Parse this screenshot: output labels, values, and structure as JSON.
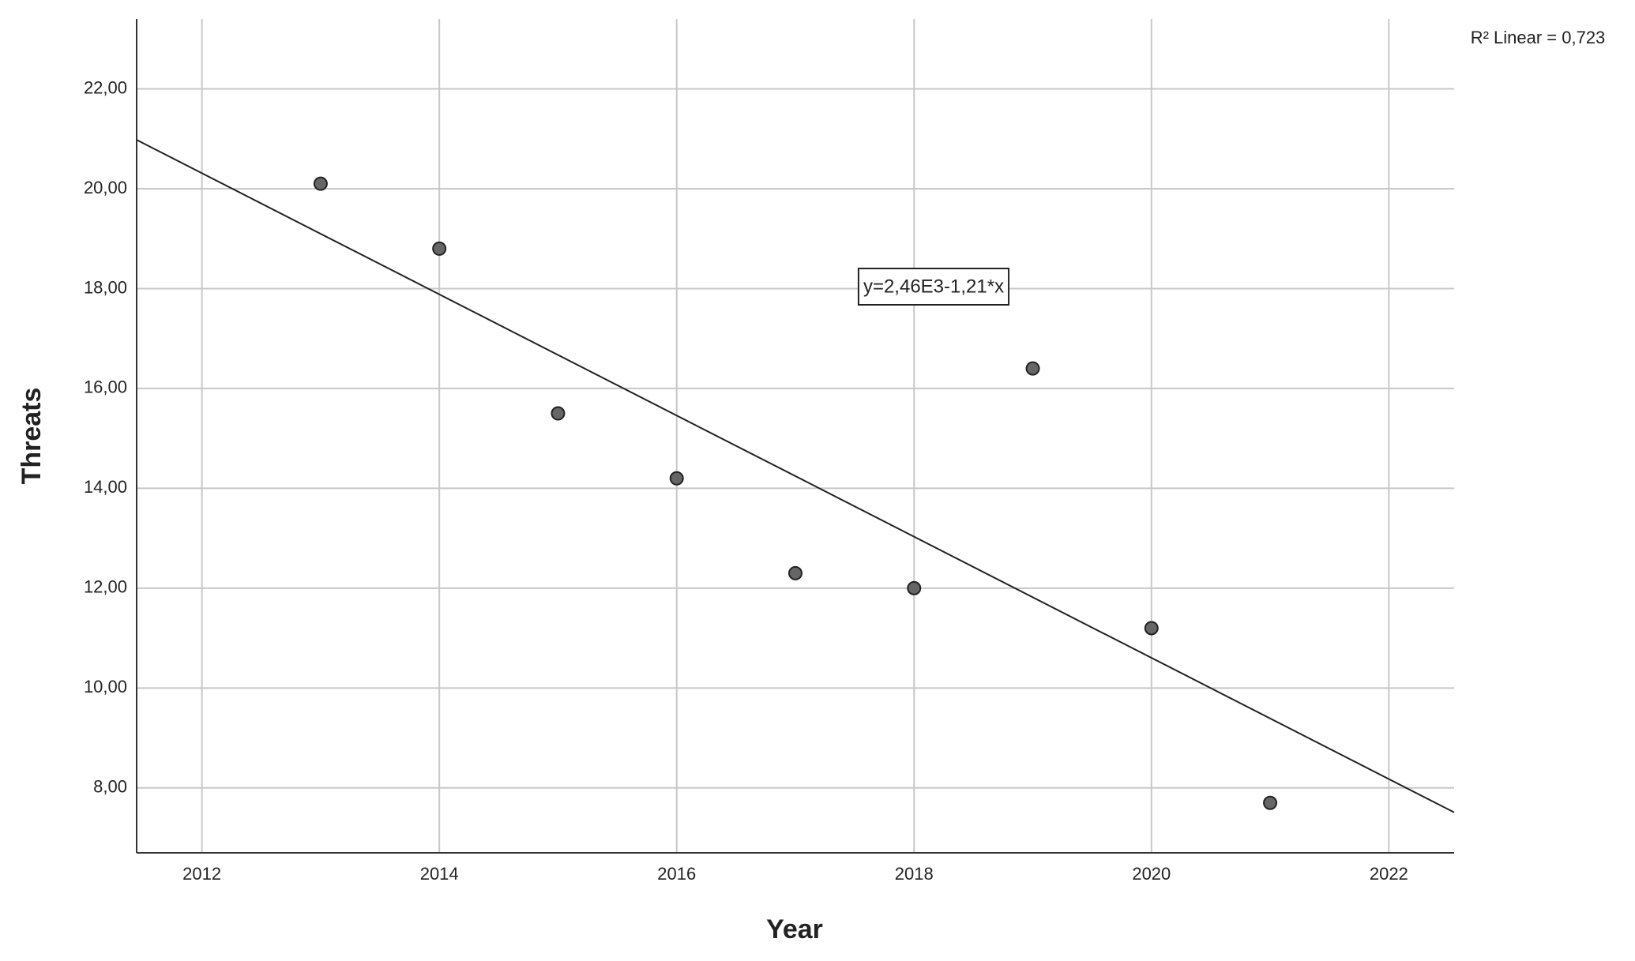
{
  "chart_data": {
    "type": "scatter",
    "x_label": "Year",
    "y_label": "Threats",
    "annotations": [
      "R² Linear = 0,723",
      "y=2,46E3-1,21*x"
    ],
    "x": [
      2013,
      2014,
      2015,
      2016,
      2017,
      2018,
      2019,
      2020,
      2021
    ],
    "values": [
      20.1,
      18.8,
      15.5,
      14.2,
      12.3,
      12.0,
      16.4,
      11.2,
      7.7
    ],
    "color": "#666666",
    "fit_line": "linear",
    "xlim": [
      2011.45,
      2022.55
    ],
    "ylim": [
      6.7,
      23.4
    ],
    "xticks": [
      2012,
      2014,
      2016,
      2018,
      2020,
      2022
    ],
    "yticks": [
      {
        "value": 8,
        "label": "8,00"
      },
      {
        "value": 10,
        "label": "10,00"
      },
      {
        "value": 12,
        "label": "12,00"
      },
      {
        "value": 14,
        "label": "14,00"
      },
      {
        "value": 16,
        "label": "16,00"
      },
      {
        "value": 18,
        "label": "18,00"
      },
      {
        "value": 20,
        "label": "20,00"
      },
      {
        "value": 22,
        "label": "22,00"
      }
    ],
    "grid": true
  }
}
